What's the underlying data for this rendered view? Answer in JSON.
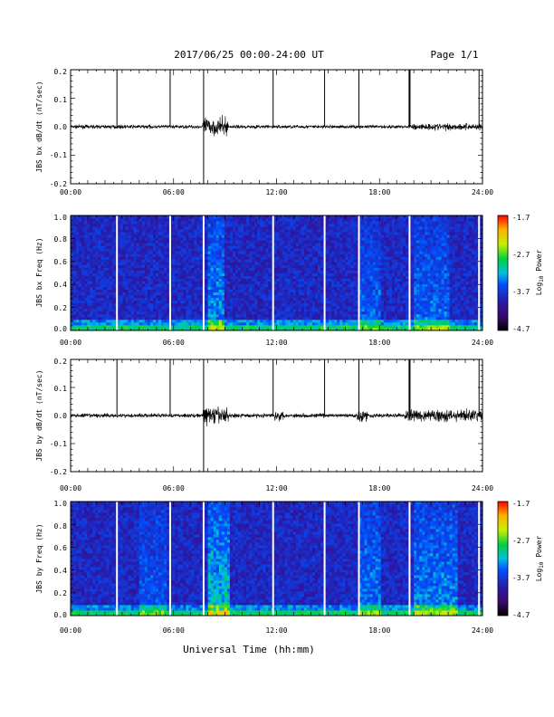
{
  "header": {
    "title": "2017/06/25  00:00-24:00 UT",
    "page": "Page 1/1"
  },
  "xaxis": {
    "ticks": [
      "00:00",
      "06:00",
      "12:00",
      "18:00",
      "24:00"
    ],
    "label": "Universal Time (hh:mm)"
  },
  "colorbar": {
    "ticks": [
      "-1.7",
      "-2.7",
      "-3.7",
      "-4.7"
    ],
    "label": "Log10 Power",
    "label_main": "Log",
    "label_sub": "10",
    "label_rest": " Power"
  },
  "panels": {
    "p1": {
      "ylabel": "JBS bx dB/dt (nT/sec)",
      "yticks": [
        "0.2",
        "0.1",
        "0.0",
        "-0.1",
        "-0.2"
      ]
    },
    "p2": {
      "ylabel": "JBS bx Freq (Hz)",
      "yticks": [
        "1.0",
        "0.8",
        "0.6",
        "0.4",
        "0.2",
        "0.0"
      ]
    },
    "p3": {
      "ylabel": "JBS by dB/dt (nT/sec)",
      "yticks": [
        "0.2",
        "0.1",
        "0.0",
        "-0.1",
        "-0.2"
      ]
    },
    "p4": {
      "ylabel": "JBS by Freq (Hz)",
      "yticks": [
        "1.0",
        "0.8",
        "0.6",
        "0.4",
        "0.2",
        "0.0"
      ]
    }
  },
  "chart_data": [
    {
      "type": "line",
      "title": "2017/06/25  00:00-24:00 UT",
      "ylabel": "JBS bx dB/dt (nT/sec)",
      "xlabel": "Universal Time (hh:mm)",
      "xlim": [
        0,
        24
      ],
      "ylim": [
        -0.2,
        0.2
      ],
      "x_ticks": [
        "00:00",
        "06:00",
        "12:00",
        "18:00",
        "24:00"
      ],
      "spikes_hours": [
        2.7,
        5.8,
        7.75,
        11.8,
        14.8,
        16.8,
        19.75,
        23.8
      ],
      "baseline_amplitude": 0.01,
      "disturbances": [
        {
          "start": 7.7,
          "end": 9.2,
          "amplitude": 0.05
        },
        {
          "start": 19.9,
          "end": 24,
          "amplitude": 0.02
        }
      ],
      "color": "#000000"
    },
    {
      "type": "heatmap",
      "ylabel": "JBS bx Freq (Hz)",
      "xlim": [
        0,
        24
      ],
      "ylim": [
        0.0,
        1.0
      ],
      "colorbar_range": [
        -4.7,
        -1.7
      ],
      "colorbar_label": "Log10 Power",
      "gaps_hours": [
        2.7,
        5.8,
        7.75,
        11.8,
        14.8,
        16.8,
        19.75,
        23.8
      ],
      "active_intervals": [
        {
          "start": 8.0,
          "end": 9.0,
          "level": 0.55
        },
        {
          "start": 16.8,
          "end": 18.0,
          "level": 0.35
        },
        {
          "start": 20.0,
          "end": 22.0,
          "level": 0.4
        }
      ]
    },
    {
      "type": "line",
      "ylabel": "JBS by dB/dt (nT/sec)",
      "xlabel": "Universal Time (hh:mm)",
      "xlim": [
        0,
        24
      ],
      "ylim": [
        -0.2,
        0.2
      ],
      "x_ticks": [
        "00:00",
        "06:00",
        "12:00",
        "18:00",
        "24:00"
      ],
      "spikes_hours": [
        2.7,
        5.8,
        7.75,
        11.8,
        14.8,
        16.8,
        19.75,
        23.8
      ],
      "baseline_amplitude": 0.012,
      "disturbances": [
        {
          "start": 7.7,
          "end": 9.2,
          "amplitude": 0.05
        },
        {
          "start": 11.9,
          "end": 12.4,
          "amplitude": 0.03
        },
        {
          "start": 16.7,
          "end": 17.3,
          "amplitude": 0.04
        },
        {
          "start": 19.5,
          "end": 24,
          "amplitude": 0.035
        }
      ],
      "color": "#000000"
    },
    {
      "type": "heatmap",
      "ylabel": "JBS by Freq (Hz)",
      "xlim": [
        0,
        24
      ],
      "ylim": [
        0.0,
        1.0
      ],
      "colorbar_range": [
        -4.7,
        -1.7
      ],
      "colorbar_label": "Log10 Power",
      "gaps_hours": [
        2.7,
        5.8,
        7.75,
        11.8,
        14.8,
        16.8,
        19.75,
        23.8
      ],
      "active_intervals": [
        {
          "start": 8.0,
          "end": 9.2,
          "level": 0.75
        },
        {
          "start": 4.0,
          "end": 5.6,
          "level": 0.3
        },
        {
          "start": 16.8,
          "end": 18.0,
          "level": 0.45
        },
        {
          "start": 20.0,
          "end": 22.5,
          "level": 0.5
        }
      ]
    }
  ]
}
